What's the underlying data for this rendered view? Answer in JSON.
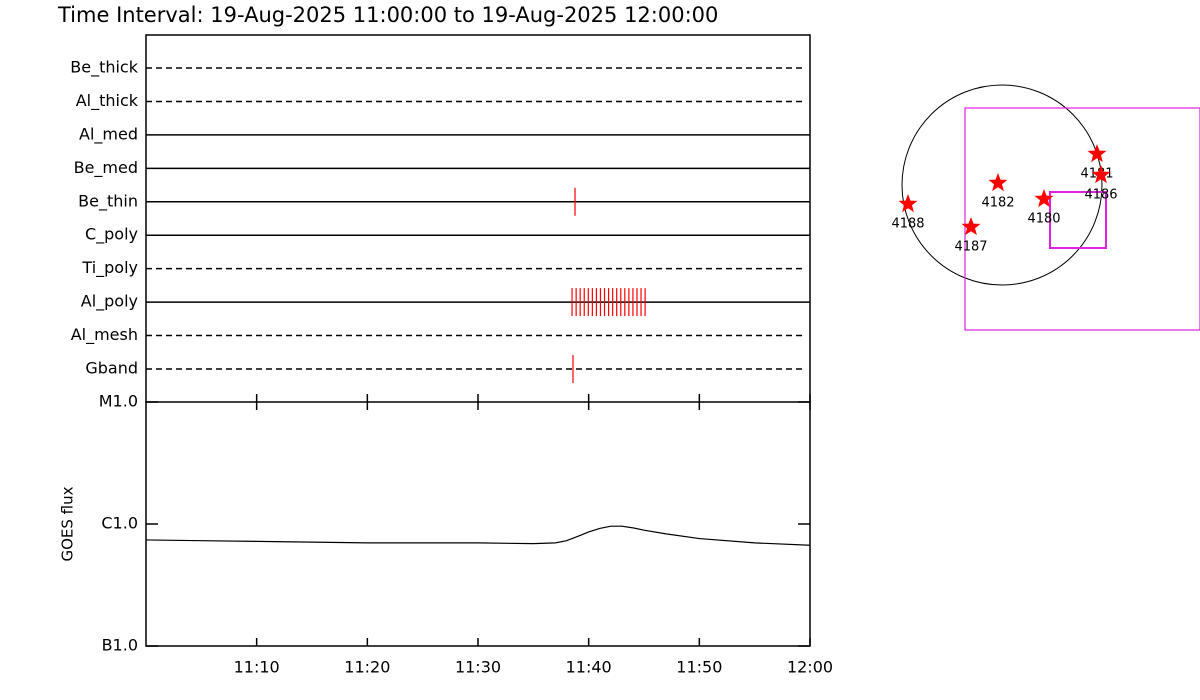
{
  "chart_data": [
    {
      "type": "timeline",
      "title": "Time Interval: 19-Aug-2025 11:00:00 to 19-Aug-2025 12:00:00",
      "xlim": [
        "11:00:00",
        "12:00:00"
      ],
      "color": "#ff0000",
      "rows": [
        {
          "name": "Be_thick",
          "line": "dashed",
          "exposures": []
        },
        {
          "name": "Al_thick",
          "line": "dashed",
          "exposures": []
        },
        {
          "name": "Al_med",
          "line": "solid",
          "exposures": []
        },
        {
          "name": "Be_med",
          "line": "solid",
          "exposures": []
        },
        {
          "name": "Be_thin",
          "line": "solid",
          "exposures": [
            "11:38:46"
          ]
        },
        {
          "name": "C_poly",
          "line": "solid",
          "exposures": []
        },
        {
          "name": "Ti_poly",
          "line": "dashed",
          "exposures": []
        },
        {
          "name": "Al_poly",
          "line": "solid",
          "exposures": [
            "11:38:30",
            "11:38:52",
            "11:39:14",
            "11:39:36",
            "11:39:58",
            "11:40:20",
            "11:40:42",
            "11:41:04",
            "11:41:26",
            "11:41:48",
            "11:42:10",
            "11:42:32",
            "11:42:54",
            "11:43:16",
            "11:43:38",
            "11:44:00",
            "11:44:22",
            "11:44:44",
            "11:45:06"
          ]
        },
        {
          "name": "Al_mesh",
          "line": "dashed",
          "exposures": []
        },
        {
          "name": "Gband",
          "line": "dashed",
          "exposures": [
            "11:38:35"
          ]
        }
      ]
    },
    {
      "type": "line",
      "ylabel": "GOES flux",
      "log_scale": true,
      "xlim": [
        "11:00:00",
        "12:00:00"
      ],
      "xticks": [
        {
          "value": "11:10:00",
          "label": "11:10"
        },
        {
          "value": "11:20:00",
          "label": "11:20"
        },
        {
          "value": "11:30:00",
          "label": "11:30"
        },
        {
          "value": "11:40:00",
          "label": "11:40"
        },
        {
          "value": "11:50:00",
          "label": "11:50"
        },
        {
          "value": "12:00:00",
          "label": "12:00"
        }
      ],
      "ylim": [
        1e-07,
        1e-05
      ],
      "yticks": [
        {
          "value": 1e-07,
          "label": "B1.0"
        },
        {
          "value": 1e-06,
          "label": "C1.0"
        },
        {
          "value": 1e-05,
          "label": "M1.0"
        }
      ],
      "x": [
        "11:00:00",
        "11:05:00",
        "11:10:00",
        "11:15:00",
        "11:20:00",
        "11:25:00",
        "11:30:00",
        "11:35:00",
        "11:37:00",
        "11:38:00",
        "11:39:00",
        "11:40:00",
        "11:41:00",
        "11:42:00",
        "11:43:00",
        "11:44:00",
        "11:45:00",
        "11:47:00",
        "11:50:00",
        "11:55:00",
        "12:00:00"
      ],
      "series": [
        {
          "color": "#000000",
          "values": [
            7.4e-07,
            7.3e-07,
            7.2e-07,
            7.1e-07,
            7e-07,
            7e-07,
            7e-07,
            6.9e-07,
            7e-07,
            7.3e-07,
            7.9e-07,
            8.6e-07,
            9.2e-07,
            9.6e-07,
            9.6e-07,
            9.3e-07,
            8.9e-07,
            8.3e-07,
            7.6e-07,
            7e-07,
            6.7e-07
          ]
        }
      ]
    }
  ],
  "map": {
    "regions": [
      "4188",
      "4187",
      "4182",
      "4180",
      "4181",
      "4186"
    ]
  }
}
